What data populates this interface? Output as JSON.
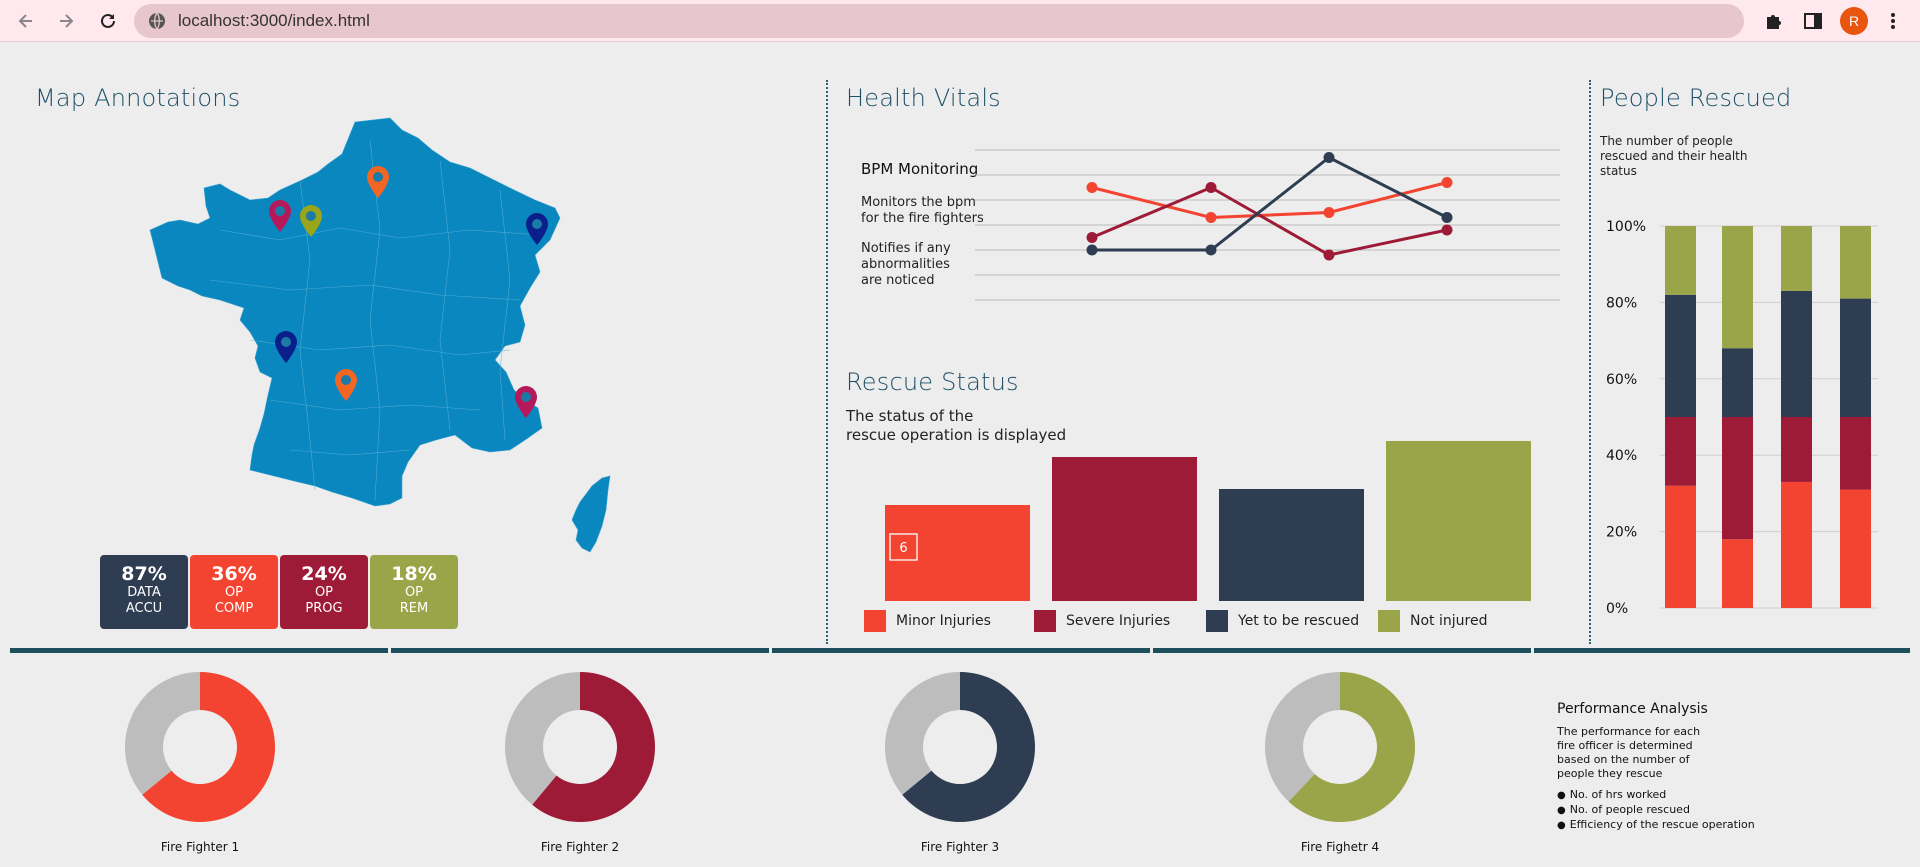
{
  "browser": {
    "url": "localhost:3000/index.html",
    "avatar_initial": "R"
  },
  "map": {
    "title": "Map Annotations",
    "kpis": [
      {
        "value": "87%",
        "line1": "DATA",
        "line2": "ACCU",
        "color": "#2e3d52"
      },
      {
        "value": "36%",
        "line1": "OP",
        "line2": "COMP",
        "color": "#f24430"
      },
      {
        "value": "24%",
        "line1": "OP",
        "line2": "PROG",
        "color": "#9e1b38"
      },
      {
        "value": "18%",
        "line1": "OP",
        "line2": "REM",
        "color": "#9aa448"
      }
    ],
    "markers": [
      {
        "color": "#f26522"
      },
      {
        "color": "#b5195b"
      },
      {
        "color": "#9aa61a"
      },
      {
        "color": "#0a1e8c"
      },
      {
        "color": "#0a1e8c"
      },
      {
        "color": "#f26522"
      },
      {
        "color": "#b5195b"
      }
    ]
  },
  "health": {
    "title": "Health Vitals",
    "bpm_title": "BPM Monitoring",
    "desc1_a": "Monitors the bpm",
    "desc1_b": "for the fire fighters",
    "desc2_a": "Notifies if any",
    "desc2_b": "abnormalities",
    "desc2_c": "are noticed",
    "chart_data": {
      "type": "line",
      "x": [
        1,
        2,
        3,
        4
      ],
      "series": [
        {
          "values": [
            4.5,
            3.3,
            3.5,
            4.7
          ],
          "color": "#f24430"
        },
        {
          "values": [
            2.5,
            4.5,
            1.8,
            2.8
          ],
          "color": "#9e1b38"
        },
        {
          "values": [
            2.0,
            2.0,
            5.7,
            3.3
          ],
          "color": "#2e3d52"
        }
      ],
      "ylim": [
        0,
        6
      ],
      "grid": true
    }
  },
  "rescue": {
    "title": "Rescue Status",
    "desc_a": "The status of the",
    "desc_b": "rescue operation is displayed",
    "data_label": "6",
    "chart_data": {
      "type": "bar",
      "categories": [
        "Minor Injuries",
        "Severe Injuries",
        "Yet to be rescued",
        "Not injured"
      ],
      "values": [
        6,
        9,
        7,
        10
      ],
      "colors": [
        "#f24430",
        "#9e1b38",
        "#2e3d52",
        "#9aa448"
      ]
    }
  },
  "people": {
    "title": "People Rescued",
    "desc_a": "The number of people",
    "desc_b": "rescued and their health",
    "desc_c": "status",
    "chart_data": {
      "type": "bar",
      "stacked": true,
      "ticks": [
        "0%",
        "20%",
        "40%",
        "60%",
        "80%",
        "100%"
      ],
      "ylim": [
        0,
        100
      ],
      "series": [
        {
          "values": [
            32,
            18,
            33,
            31
          ],
          "color": "#f24430"
        },
        {
          "values": [
            18,
            32,
            17,
            19
          ],
          "color": "#9e1b38"
        },
        {
          "values": [
            32,
            18,
            33,
            31
          ],
          "color": "#2e3d52"
        },
        {
          "values": [
            18,
            32,
            17,
            19
          ],
          "color": "#9aa448"
        }
      ]
    }
  },
  "firefighters": {
    "chart_data": {
      "type": "pie",
      "donut": true,
      "items": [
        {
          "label": "Fire Fighter 1",
          "value": 64,
          "color": "#f24430"
        },
        {
          "label": "Fire Fighter 2",
          "value": 61,
          "color": "#9e1b38"
        },
        {
          "label": "Fire Fighter 3",
          "value": 64,
          "color": "#2e3d52"
        },
        {
          "label": "Fire Fighetr 4",
          "value": 62,
          "color": "#9aa448"
        }
      ],
      "remainder_color": "#bdbdbd"
    }
  },
  "performance": {
    "title": "Performance Analysis",
    "desc_a": "The performance for each",
    "desc_b": "fire officer is determined",
    "desc_c": "based on the number of",
    "desc_d": "people they rescue",
    "items": [
      "No. of hrs worked",
      "No. of people rescued",
      "Efficiency of the rescue operation"
    ]
  }
}
